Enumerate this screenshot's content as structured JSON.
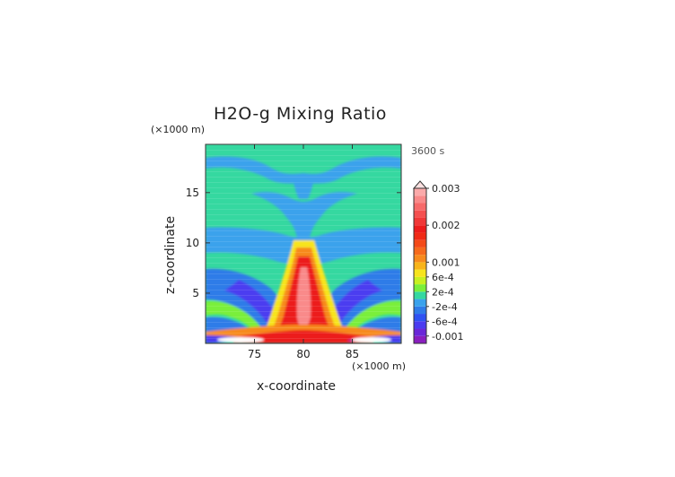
{
  "chart_data": {
    "type": "heatmap",
    "title": "H2O-g Mixing Ratio",
    "xlabel": "x-coordinate",
    "ylabel": "z-coordinate",
    "x_unit": "(×1000 m)",
    "y_unit": "(×1000 m)",
    "time_label": "3600 s",
    "xlim": [
      70,
      90
    ],
    "ylim": [
      0,
      19.8
    ],
    "x_ticks": [
      "75",
      "80",
      "85"
    ],
    "y_ticks": [
      "5",
      "10",
      "15"
    ],
    "x_tick_values": [
      75,
      80,
      85
    ],
    "y_tick_values": [
      5,
      10,
      15
    ],
    "colorbar_labels": [
      "0.003",
      "0.002",
      "0.001",
      "6e-4",
      "2e-4",
      "-2e-4",
      "-6e-4",
      "-0.001"
    ],
    "colorbar_label_values": [
      0.003,
      0.002,
      0.001,
      0.0006,
      0.0002,
      -0.0002,
      -0.0006,
      -0.001
    ],
    "colorbar_extend": "max",
    "color_levels": [
      {
        "min": -0.0012,
        "max": -0.001,
        "color": "#8a1fbf"
      },
      {
        "min": -0.001,
        "max": -0.0008,
        "color": "#6a28d8"
      },
      {
        "min": -0.0008,
        "max": -0.0006,
        "color": "#4b3cf0"
      },
      {
        "min": -0.0006,
        "max": -0.0004,
        "color": "#2f52f2"
      },
      {
        "min": -0.0004,
        "max": -0.0002,
        "color": "#2f7be8"
      },
      {
        "min": -0.0002,
        "max": 0,
        "color": "#3aa2ec"
      },
      {
        "min": 0,
        "max": 0.0002,
        "color": "#35d8a0"
      },
      {
        "min": 0.0002,
        "max": 0.0004,
        "color": "#7aef3a"
      },
      {
        "min": 0.0004,
        "max": 0.0006,
        "color": "#c8f020"
      },
      {
        "min": 0.0006,
        "max": 0.0008,
        "color": "#f7e41d"
      },
      {
        "min": 0.0008,
        "max": 0.001,
        "color": "#f8b41a"
      },
      {
        "min": 0.001,
        "max": 0.0012,
        "color": "#f78a1d"
      },
      {
        "min": 0.0012,
        "max": 0.0014,
        "color": "#f66a1c"
      },
      {
        "min": 0.0014,
        "max": 0.0016,
        "color": "#f44a18"
      },
      {
        "min": 0.0016,
        "max": 0.0018,
        "color": "#f02a16"
      },
      {
        "min": 0.0018,
        "max": 0.002,
        "color": "#ec1c1c"
      },
      {
        "min": 0.002,
        "max": 0.0022,
        "color": "#f03838"
      },
      {
        "min": 0.0022,
        "max": 0.0024,
        "color": "#f45050"
      },
      {
        "min": 0.0024,
        "max": 0.0026,
        "color": "#f76a6a"
      },
      {
        "min": 0.0026,
        "max": 0.0028,
        "color": "#f98a8a"
      },
      {
        "min": 0.0028,
        "max": 0.003,
        "color": "#fbaaaa"
      }
    ],
    "grid": false,
    "legend": "colorbar-right"
  }
}
